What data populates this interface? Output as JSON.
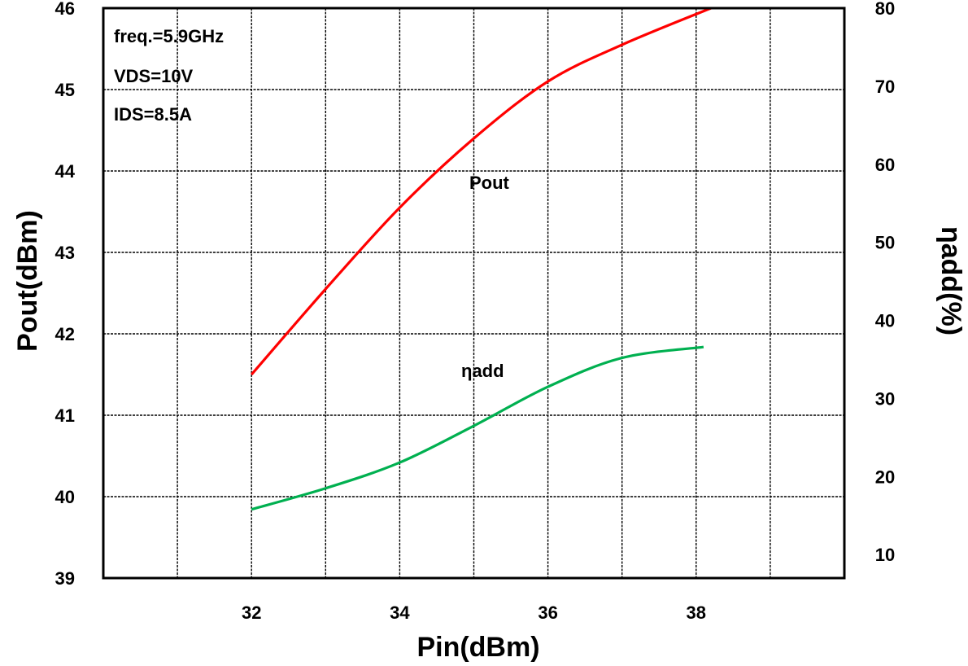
{
  "chart_data": {
    "type": "line",
    "x": [
      32,
      33,
      34,
      35,
      36,
      37,
      38.2
    ],
    "xlabel": "Pin(dBm)",
    "xticks": [
      32,
      34,
      36,
      38
    ],
    "xlim": [
      30,
      40
    ],
    "ylabel_left": "Pout(dBm)",
    "yticks_left": [
      39,
      40,
      41,
      42,
      43,
      44,
      45,
      46
    ],
    "ylim_left": [
      39,
      46
    ],
    "ylabel_right": "ηadd(%)",
    "yticks_right": [
      10,
      20,
      30,
      40,
      50,
      60,
      70,
      80
    ],
    "ylim_right": [
      7,
      80
    ],
    "grid": true,
    "annotations": [
      "freq.=5.9GHz",
      "VDS=10V",
      "IDS=8.5A"
    ],
    "series": [
      {
        "name": "Pout",
        "axis": "left",
        "color": "#ff0000",
        "x": [
          32,
          33,
          34,
          35,
          36,
          37,
          38.2
        ],
        "values": [
          41.5,
          42.55,
          43.55,
          44.4,
          45.1,
          45.55,
          46.0
        ]
      },
      {
        "name": "ηadd",
        "axis": "right",
        "color": "#00b050",
        "x": [
          32,
          33,
          34,
          35,
          36,
          37,
          38.1
        ],
        "values": [
          15.8,
          18.5,
          21.8,
          26.5,
          31.5,
          35.2,
          36.6
        ]
      }
    ]
  }
}
